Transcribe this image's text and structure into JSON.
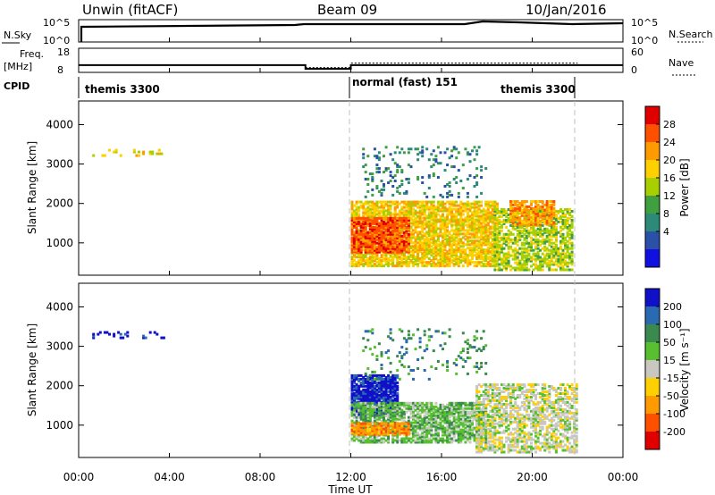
{
  "header": {
    "station": "Unwin (fitACF)",
    "beam": "Beam 09",
    "date": "10/Jan/2016"
  },
  "aux": {
    "nsky_label": "N.Sky",
    "nsky_ticks": [
      "10^5",
      "10^0"
    ],
    "nsearch_label": "N.Search",
    "nsearch_ticks": [
      "10^5",
      "10^0"
    ],
    "freq_label_1": "Freq.",
    "freq_label_2": "[MHz]",
    "freq_ticks": [
      "18",
      "8"
    ],
    "nave_label": "Nave",
    "nave_ticks": [
      "60",
      "0"
    ],
    "cpid_label": "CPID",
    "cpid_segments": [
      {
        "label": "themis 3300",
        "start_hour": 0,
        "end_hour": 12
      },
      {
        "label": "normal (fast) 151",
        "start_hour": 12,
        "end_hour": 22
      },
      {
        "label": "themis 3300",
        "start_hour": 18.3,
        "end_hour": 22
      }
    ],
    "freq_trace": [
      {
        "t": 0,
        "mhz": 11
      },
      {
        "t": 10,
        "mhz": 11
      },
      {
        "t": 10,
        "mhz": 9.5
      },
      {
        "t": 12,
        "mhz": 9.5
      },
      {
        "t": 12,
        "mhz": 11
      },
      {
        "t": 24,
        "mhz": 11
      }
    ],
    "nave_trace": [
      {
        "t": 10,
        "nave": 12
      },
      {
        "t": 12,
        "nave": 12
      },
      {
        "t": 12,
        "nave": 23
      },
      {
        "t": 22,
        "nave": 23
      }
    ]
  },
  "chart_data": [
    {
      "type": "heatmap",
      "title": "",
      "xlabel": "Time UT",
      "ylabel": "Slant Range [km]",
      "xlim": [
        "00:00",
        "24:00"
      ],
      "ylim": [
        180,
        4600
      ],
      "x_tick_labels": [
        "00:00",
        "04:00",
        "08:00",
        "12:00",
        "16:00",
        "20:00",
        "00:00"
      ],
      "y_tick_labels": [
        "1000",
        "2000",
        "3000",
        "4000"
      ],
      "y_ticks": [
        1000,
        2000,
        3000,
        4000
      ],
      "colorbar": {
        "label": "Power [dB]",
        "tick_labels": [
          "28",
          "24",
          "20",
          "16",
          "12",
          "8",
          "4"
        ],
        "colors": [
          "#e00000",
          "#ff5000",
          "#ff9a00",
          "#ffd000",
          "#a8d000",
          "#40a040",
          "#2e8a78",
          "#2a50a8",
          "#1010e0"
        ]
      },
      "regions": [
        {
          "t0": 0.6,
          "t1": 3.9,
          "r0": 3250,
          "r1": 3400,
          "density": 0.2,
          "power_db": 18
        },
        {
          "t0": 12.0,
          "t1": 18.5,
          "r0": 450,
          "r1": 2100,
          "density": 0.75,
          "power_db": 20
        },
        {
          "t0": 12.0,
          "t1": 14.5,
          "r0": 800,
          "r1": 1700,
          "density": 0.85,
          "power_db": 27
        },
        {
          "t0": 18.3,
          "t1": 21.8,
          "r0": 350,
          "r1": 1900,
          "density": 0.6,
          "power_db": 15
        },
        {
          "t0": 19.0,
          "t1": 21.0,
          "r0": 1500,
          "r1": 2100,
          "density": 0.7,
          "power_db": 22
        },
        {
          "t0": 12.5,
          "t1": 18.0,
          "r0": 2200,
          "r1": 3500,
          "density": 0.12,
          "power_db": 8
        }
      ]
    },
    {
      "type": "heatmap",
      "title": "",
      "xlabel": "Time UT",
      "ylabel": "Slant Range [km]",
      "xlim": [
        "00:00",
        "24:00"
      ],
      "ylim": [
        180,
        4600
      ],
      "x_tick_labels": [
        "00:00",
        "04:00",
        "08:00",
        "12:00",
        "16:00",
        "20:00",
        "00:00"
      ],
      "y_tick_labels": [
        "1000",
        "2000",
        "3000",
        "4000"
      ],
      "y_ticks": [
        1000,
        2000,
        3000,
        4000
      ],
      "colorbar": {
        "label": "Velocity [m s⁻¹]",
        "tick_labels": [
          "200",
          "100",
          "50",
          "15",
          "-15",
          "-50",
          "-100",
          "-200"
        ],
        "colors": [
          "#1010c8",
          "#2a6ab0",
          "#3a8a50",
          "#58c030",
          "#c8c8c0",
          "#ffd000",
          "#ff9a00",
          "#ff5000",
          "#e00000"
        ]
      },
      "regions": [
        {
          "t0": 0.6,
          "t1": 3.9,
          "r0": 3250,
          "r1": 3400,
          "density": 0.2,
          "velocity": 200
        },
        {
          "t0": 12.0,
          "t1": 14.0,
          "r0": 1300,
          "r1": 2300,
          "density": 0.85,
          "velocity": 220
        },
        {
          "t0": 12.0,
          "t1": 18.0,
          "r0": 600,
          "r1": 1600,
          "density": 0.7,
          "velocity": 40
        },
        {
          "t0": 12.0,
          "t1": 14.5,
          "r0": 800,
          "r1": 1100,
          "density": 0.8,
          "velocity": -100
        },
        {
          "t0": 17.5,
          "t1": 22.0,
          "r0": 350,
          "r1": 2100,
          "density": 0.55,
          "velocity": 0
        },
        {
          "t0": 12.5,
          "t1": 18.0,
          "r0": 2200,
          "r1": 3500,
          "density": 0.1,
          "velocity": 60
        }
      ]
    }
  ]
}
